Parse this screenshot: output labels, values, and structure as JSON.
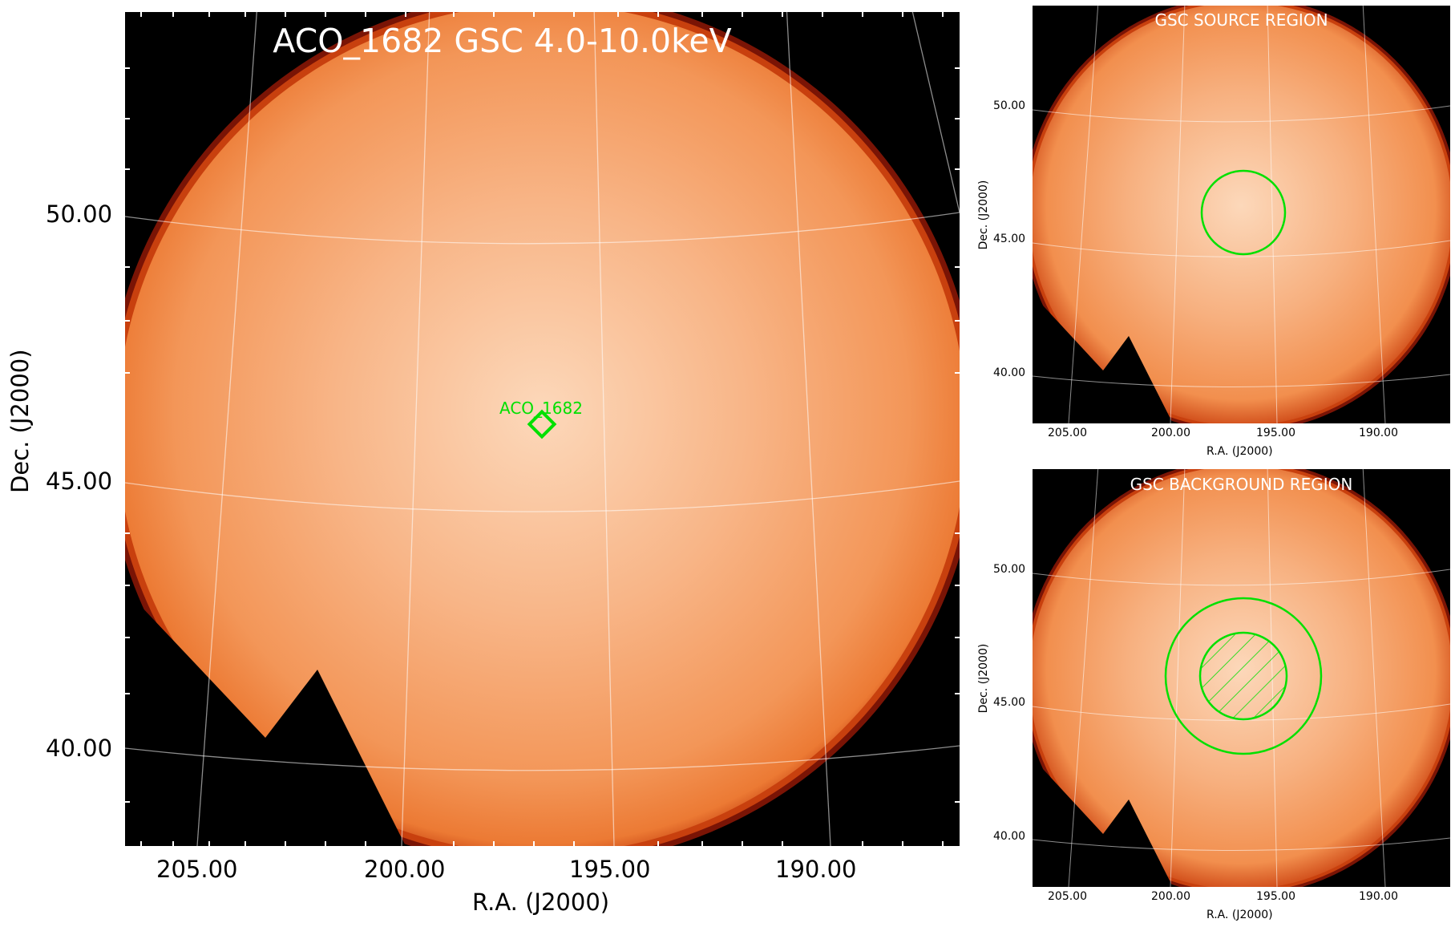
{
  "main": {
    "title": "ACO_1682 GSC 4.0-10.0keV",
    "source_label": "ACO_1682",
    "xlabel": "R.A. (J2000)",
    "ylabel": "Dec. (J2000)",
    "xticks": [
      "205.00",
      "200.00",
      "195.00",
      "190.00"
    ],
    "yticks": [
      "50.00",
      "45.00",
      "40.00"
    ]
  },
  "source_panel": {
    "title": "GSC SOURCE REGION",
    "xlabel": "R.A. (J2000)",
    "ylabel": "Dec. (J2000)",
    "xticks": [
      "205.00",
      "200.00",
      "195.00",
      "190.00"
    ],
    "yticks": [
      "50.00",
      "45.00",
      "40.00"
    ]
  },
  "background_panel": {
    "title": "GSC BACKGROUND REGION",
    "xlabel": "R.A. (J2000)",
    "ylabel": "Dec. (J2000)",
    "xticks": [
      "205.00",
      "200.00",
      "195.00",
      "190.00"
    ],
    "yticks": [
      "50.00",
      "45.00",
      "40.00"
    ]
  },
  "colors": {
    "map_center": "#fbd0b0",
    "map_mid": "#f6a56f",
    "map_edge": "#e0601a",
    "rim": "#a01808",
    "region": "#00e000",
    "grid": "#ffffff"
  }
}
